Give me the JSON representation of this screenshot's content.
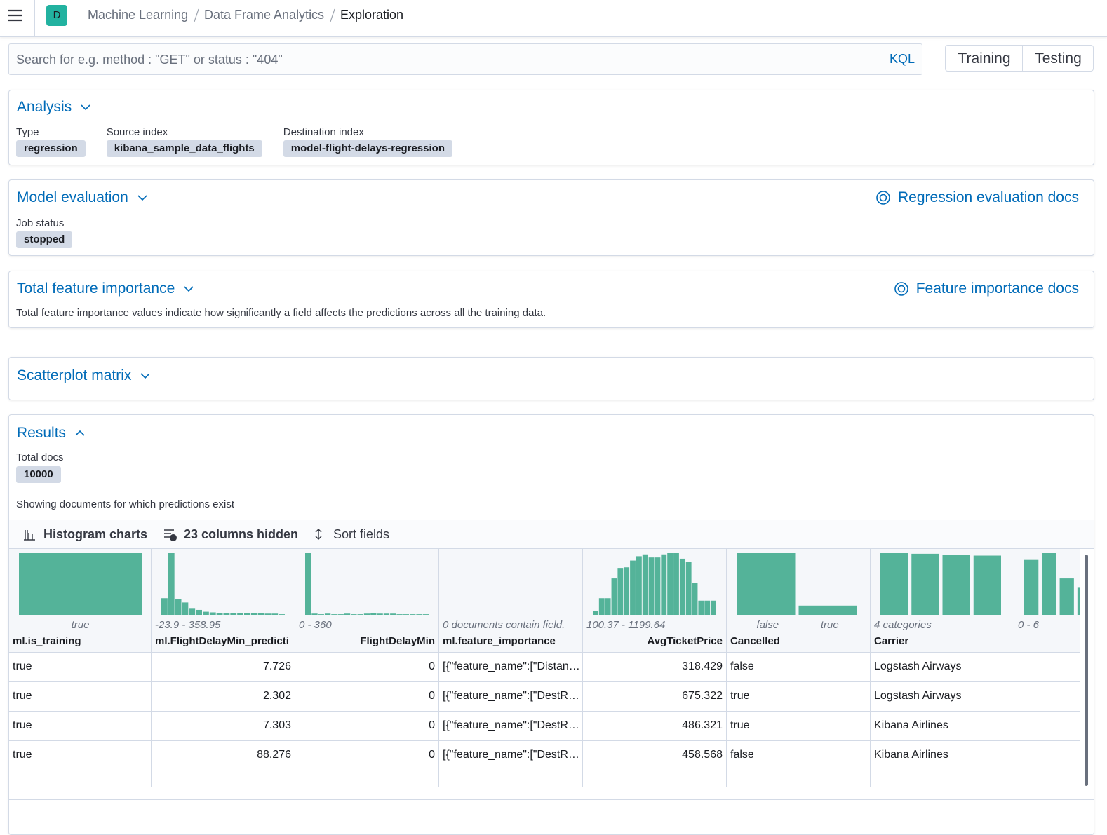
{
  "header": {
    "avatar": "D",
    "breadcrumbs": [
      "Machine Learning",
      "Data Frame Analytics",
      "Exploration"
    ]
  },
  "search": {
    "placeholder": "Search for e.g. method : \"GET\" or status : \"404\"",
    "language": "KQL",
    "toggle": [
      "Training",
      "Testing"
    ]
  },
  "analysis": {
    "title": "Analysis",
    "fields": [
      {
        "label": "Type",
        "value": "regression"
      },
      {
        "label": "Source index",
        "value": "kibana_sample_data_flights"
      },
      {
        "label": "Destination index",
        "value": "model-flight-delays-regression"
      }
    ]
  },
  "model_evaluation": {
    "title": "Model evaluation",
    "docs_link": "Regression evaluation docs",
    "fields": [
      {
        "label": "Job status",
        "value": "stopped"
      }
    ]
  },
  "feature_importance": {
    "title": "Total feature importance",
    "docs_link": "Feature importance docs",
    "description": "Total feature importance values indicate how significantly a field affects the predictions across all the training data."
  },
  "scatterplot_matrix": {
    "title": "Scatterplot matrix"
  },
  "results": {
    "title": "Results",
    "total_label": "Total docs",
    "total_value": 10000,
    "note": "Showing documents for which predictions exist",
    "toolbar": [
      "Histogram charts",
      "23 columns hidden",
      "Sort fields"
    ],
    "columns": [
      {
        "name": "ml.is_training",
        "name_align": "left",
        "summary": [
          "true"
        ],
        "summary_align": "bars",
        "kind": "categorical",
        "histogram": [
          100
        ]
      },
      {
        "name": "ml.FlightDelayMin_predicti",
        "name_align": "left",
        "summary": [
          "-23.9 - 358.95"
        ],
        "summary_align": "left",
        "kind": "numeric",
        "histogram": [
          27,
          100,
          25,
          20,
          11,
          8,
          5,
          4,
          3,
          3,
          3,
          3,
          3,
          3,
          3,
          2,
          2,
          1
        ]
      },
      {
        "name": "FlightDelayMin",
        "name_align": "right",
        "summary": [
          "0 - 360"
        ],
        "summary_align": "left",
        "kind": "numeric",
        "histogram": [
          100,
          2,
          1,
          2,
          1,
          1,
          2,
          1,
          1,
          2,
          3,
          2,
          2,
          2,
          1,
          1,
          1,
          1,
          1
        ]
      },
      {
        "name": "ml.feature_importance",
        "name_align": "left",
        "summary": [
          "0 documents contain field."
        ],
        "summary_align": "left",
        "kind": "none"
      },
      {
        "name": "AvgTicketPrice",
        "name_align": "right",
        "summary": [
          "100.37 - 1199.64"
        ],
        "summary_align": "left",
        "kind": "numeric",
        "histogram": [
          6,
          27,
          27,
          59,
          76,
          77,
          88,
          95,
          98,
          93,
          93,
          98,
          100,
          100,
          91,
          86,
          52,
          23,
          23,
          23
        ]
      },
      {
        "name": "Cancelled",
        "name_align": "left",
        "summary": [
          "false",
          "true"
        ],
        "summary_align": "bars",
        "kind": "categorical",
        "histogram": [
          100,
          15
        ]
      },
      {
        "name": "Carrier",
        "name_align": "left",
        "summary": [
          "4 categories"
        ],
        "summary_align": "left",
        "kind": "categorical",
        "histogram": [
          100,
          99,
          97,
          96
        ]
      },
      {
        "summary": [
          "0 - 6"
        ],
        "summary_align": "left",
        "kind": "categorical",
        "histogram": [
          89,
          100,
          59,
          45,
          null,
          null,
          null
        ]
      }
    ],
    "rows": [
      [
        "true",
        7.726,
        0,
        "[{\"feature_name\":[\"Distan…",
        318.429,
        "false",
        "Logstash Airways"
      ],
      [
        "true",
        2.302,
        0,
        "[{\"feature_name\":[\"DestR…",
        675.322,
        "true",
        "Logstash Airways"
      ],
      [
        "true",
        7.303,
        0,
        "[{\"feature_name\":[\"DestR…",
        486.321,
        "true",
        "Kibana Airlines"
      ],
      [
        "true",
        88.276,
        0,
        "[{\"feature_name\":[\"DestR…",
        458.568,
        "false",
        "Kibana Airlines"
      ]
    ]
  }
}
